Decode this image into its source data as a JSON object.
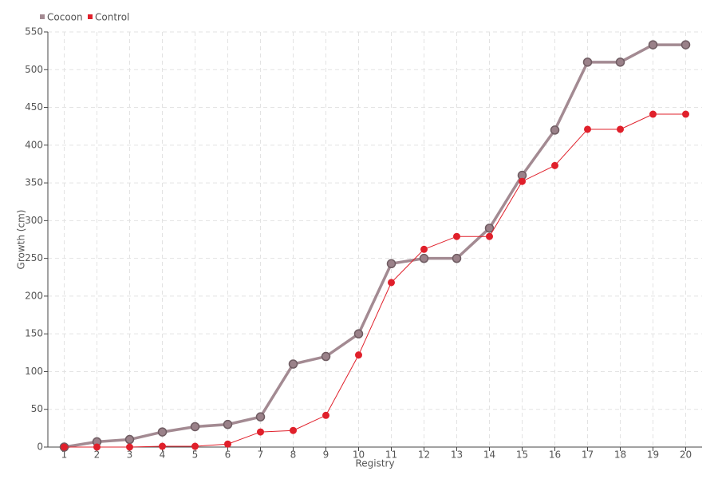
{
  "chart_data": {
    "type": "line",
    "x_label": "Registry",
    "y_label": "Growth (cm)",
    "x": [
      1,
      2,
      3,
      4,
      5,
      6,
      7,
      8,
      9,
      10,
      11,
      12,
      13,
      14,
      15,
      16,
      17,
      18,
      19,
      20
    ],
    "xlim": [
      0.5,
      20.5
    ],
    "xticks": [
      1,
      2,
      3,
      4,
      5,
      6,
      7,
      8,
      9,
      10,
      11,
      12,
      13,
      14,
      15,
      16,
      17,
      18,
      19,
      20
    ],
    "ylim": [
      0,
      550
    ],
    "yticks": [
      0,
      50,
      100,
      150,
      200,
      250,
      300,
      350,
      400,
      450,
      500,
      550
    ],
    "grid": true,
    "legend": "top-left",
    "series": [
      {
        "name": "Cocoon",
        "color": "#a38a92",
        "values": [
          0,
          7,
          10,
          20,
          27,
          30,
          40,
          110,
          120,
          150,
          243,
          250,
          250,
          290,
          360,
          420,
          510,
          510,
          533,
          533
        ]
      },
      {
        "name": "Control",
        "color": "#e0202b",
        "values": [
          0,
          0,
          0,
          1,
          1,
          4,
          20,
          22,
          42,
          122,
          218,
          262,
          279,
          279,
          352,
          373,
          421,
          421,
          441,
          441
        ]
      }
    ]
  }
}
